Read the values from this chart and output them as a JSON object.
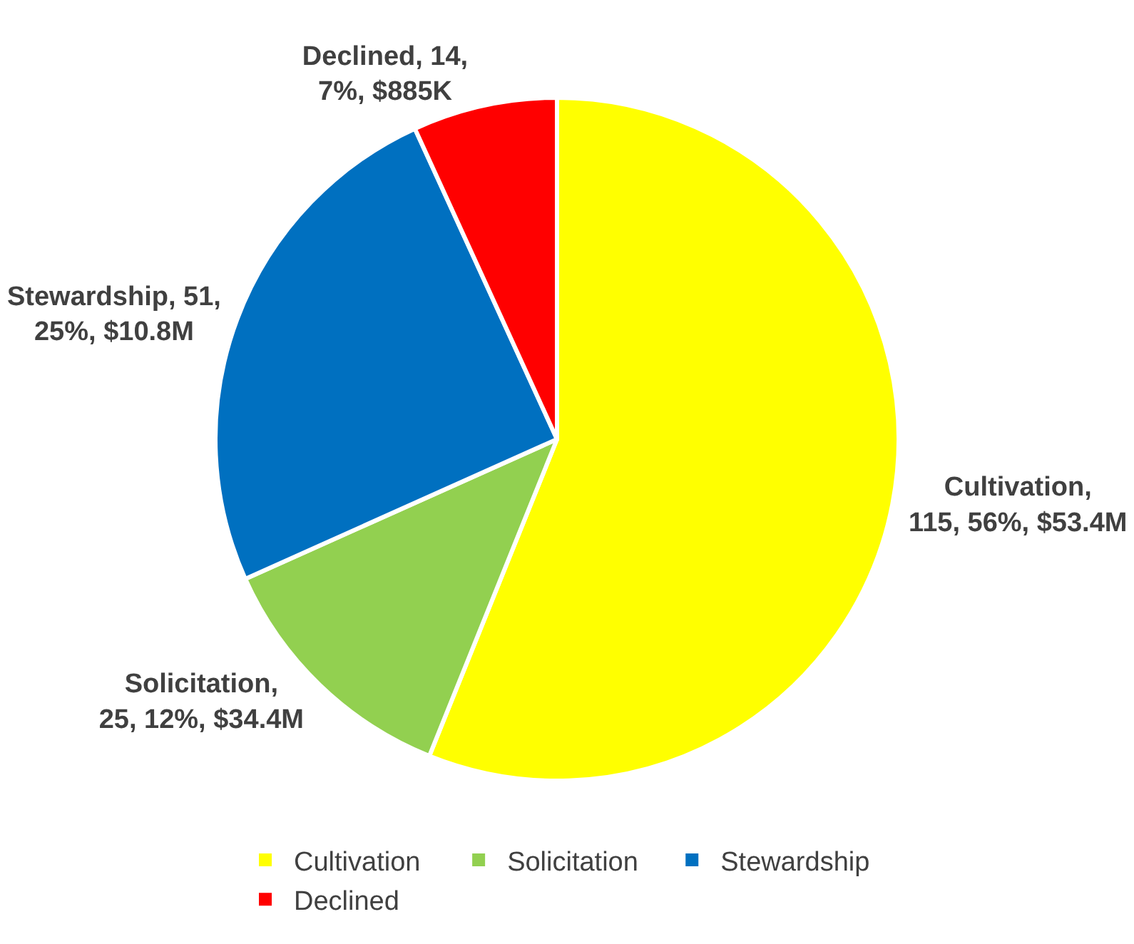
{
  "chart_data": {
    "type": "pie",
    "categories": [
      "Cultivation",
      "Solicitation",
      "Stewardship",
      "Declined"
    ],
    "values": [
      115,
      25,
      51,
      14
    ],
    "colors": [
      "#ffff00",
      "#92d050",
      "#0070c0",
      "#ff0000"
    ],
    "value_labels": [
      "Cultivation, 115, 56%, $53.4M",
      "Solicitation, 25, 12%, $34.4M",
      "Stewardship, 51, 25%, $10.8M",
      "Declined, 14, 7%, $885K"
    ],
    "legend": "bottom"
  }
}
